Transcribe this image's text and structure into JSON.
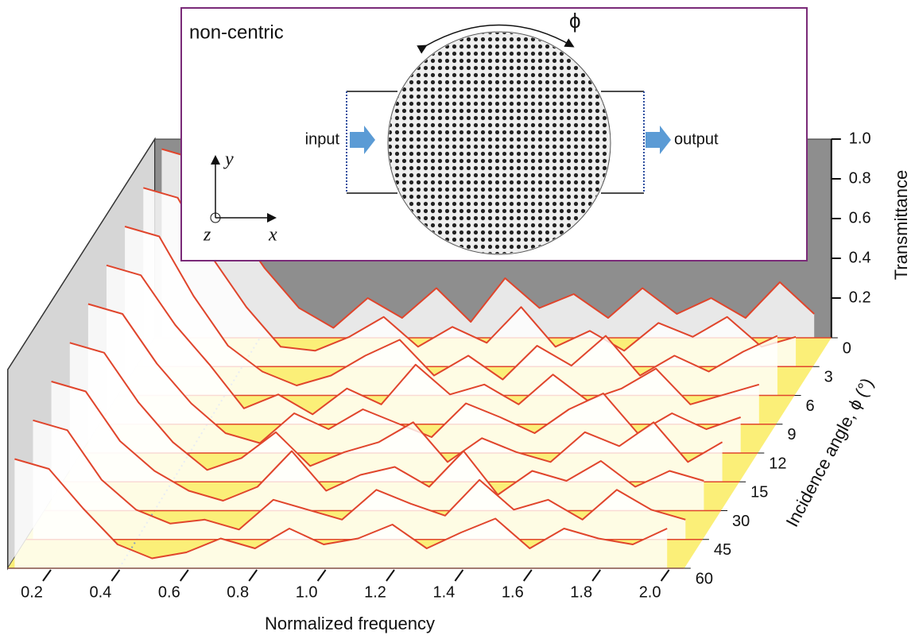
{
  "chart_data": {
    "type": "waterfall",
    "x_label": "Normalized frequency",
    "y_label": "Transmittance",
    "z_label": "Incidence angle, ϕ (°)",
    "x": [
      0.15,
      0.25,
      0.35,
      0.45,
      0.55,
      0.65,
      0.75,
      0.85,
      0.95,
      1.05,
      1.15,
      1.25,
      1.35,
      1.45,
      1.55,
      1.65,
      1.75,
      1.85,
      1.95,
      2.05
    ],
    "series": [
      {
        "name": "0",
        "color": "#e0452c",
        "values": [
          0.95,
          0.9,
          0.6,
          0.35,
          0.15,
          0.05,
          0.2,
          0.1,
          0.25,
          0.08,
          0.3,
          0.15,
          0.22,
          0.1,
          0.25,
          0.12,
          0.2,
          0.1,
          0.28,
          0.12
        ]
      },
      {
        "name": "3",
        "color": "#e0452c",
        "values": [
          0.9,
          0.85,
          0.55,
          0.3,
          0.1,
          0.08,
          0.15,
          0.25,
          0.1,
          0.2,
          0.12,
          0.3,
          0.1,
          0.18,
          0.08,
          0.22,
          0.15,
          0.25,
          0.1,
          0.15
        ]
      },
      {
        "name": "6",
        "color": "#e0452c",
        "values": [
          0.85,
          0.8,
          0.5,
          0.25,
          0.12,
          0.05,
          0.1,
          0.2,
          0.28,
          0.1,
          0.2,
          0.08,
          0.25,
          0.15,
          0.3,
          0.1,
          0.2,
          0.12,
          0.22,
          0.3
        ]
      },
      {
        "name": "9",
        "color": "#e0452c",
        "values": [
          0.8,
          0.75,
          0.5,
          0.3,
          0.08,
          0.15,
          0.05,
          0.18,
          0.1,
          0.3,
          0.15,
          0.2,
          0.1,
          0.25,
          0.12,
          0.18,
          0.28,
          0.1,
          0.15,
          0.2
        ]
      },
      {
        "name": "12",
        "color": "#e0452c",
        "values": [
          0.75,
          0.7,
          0.45,
          0.25,
          0.1,
          0.05,
          0.2,
          0.12,
          0.22,
          0.15,
          0.08,
          0.25,
          0.18,
          0.1,
          0.22,
          0.3,
          0.1,
          0.2,
          0.12,
          0.18
        ]
      },
      {
        "name": "15",
        "color": "#e0452c",
        "values": [
          0.7,
          0.65,
          0.4,
          0.2,
          0.06,
          0.12,
          0.25,
          0.08,
          0.15,
          0.2,
          0.3,
          0.1,
          0.22,
          0.15,
          0.1,
          0.25,
          0.18,
          0.3,
          0.1,
          0.2
        ]
      },
      {
        "name": "30",
        "color": "#e0452c",
        "values": [
          0.65,
          0.6,
          0.35,
          0.2,
          0.1,
          0.05,
          0.12,
          0.3,
          0.1,
          0.18,
          0.22,
          0.12,
          0.3,
          0.08,
          0.2,
          0.15,
          0.25,
          0.12,
          0.2,
          0.15
        ]
      },
      {
        "name": "45",
        "color": "#e0452c",
        "values": [
          0.6,
          0.55,
          0.3,
          0.15,
          0.08,
          0.1,
          0.05,
          0.2,
          0.15,
          0.1,
          0.25,
          0.18,
          0.12,
          0.3,
          0.15,
          0.2,
          0.1,
          0.25,
          0.15,
          0.1
        ]
      },
      {
        "name": "60",
        "color": "#e0452c",
        "values": [
          0.55,
          0.5,
          0.3,
          0.12,
          0.05,
          0.08,
          0.15,
          0.1,
          0.2,
          0.12,
          0.15,
          0.22,
          0.1,
          0.18,
          0.25,
          0.1,
          0.2,
          0.15,
          0.12,
          0.2
        ]
      }
    ],
    "xlim": [
      0.13,
      2.1
    ],
    "xticks": [
      0.2,
      0.4,
      0.6,
      0.8,
      {
        "value": 1,
        "label": "1.0"
      },
      1.2,
      1.4,
      1.6,
      1.8,
      {
        "value": 2,
        "label": "2.0"
      }
    ],
    "ylim": [
      0,
      1
    ],
    "yticks": [
      0.2,
      0.4,
      0.6,
      0.8,
      {
        "value": 1,
        "label": "1.0"
      }
    ]
  },
  "inset": {
    "title": "non-centric",
    "phi": "ϕ",
    "input": "input",
    "output": "output",
    "axis_y": "y",
    "axis_z": "z",
    "axis_x": "x"
  }
}
